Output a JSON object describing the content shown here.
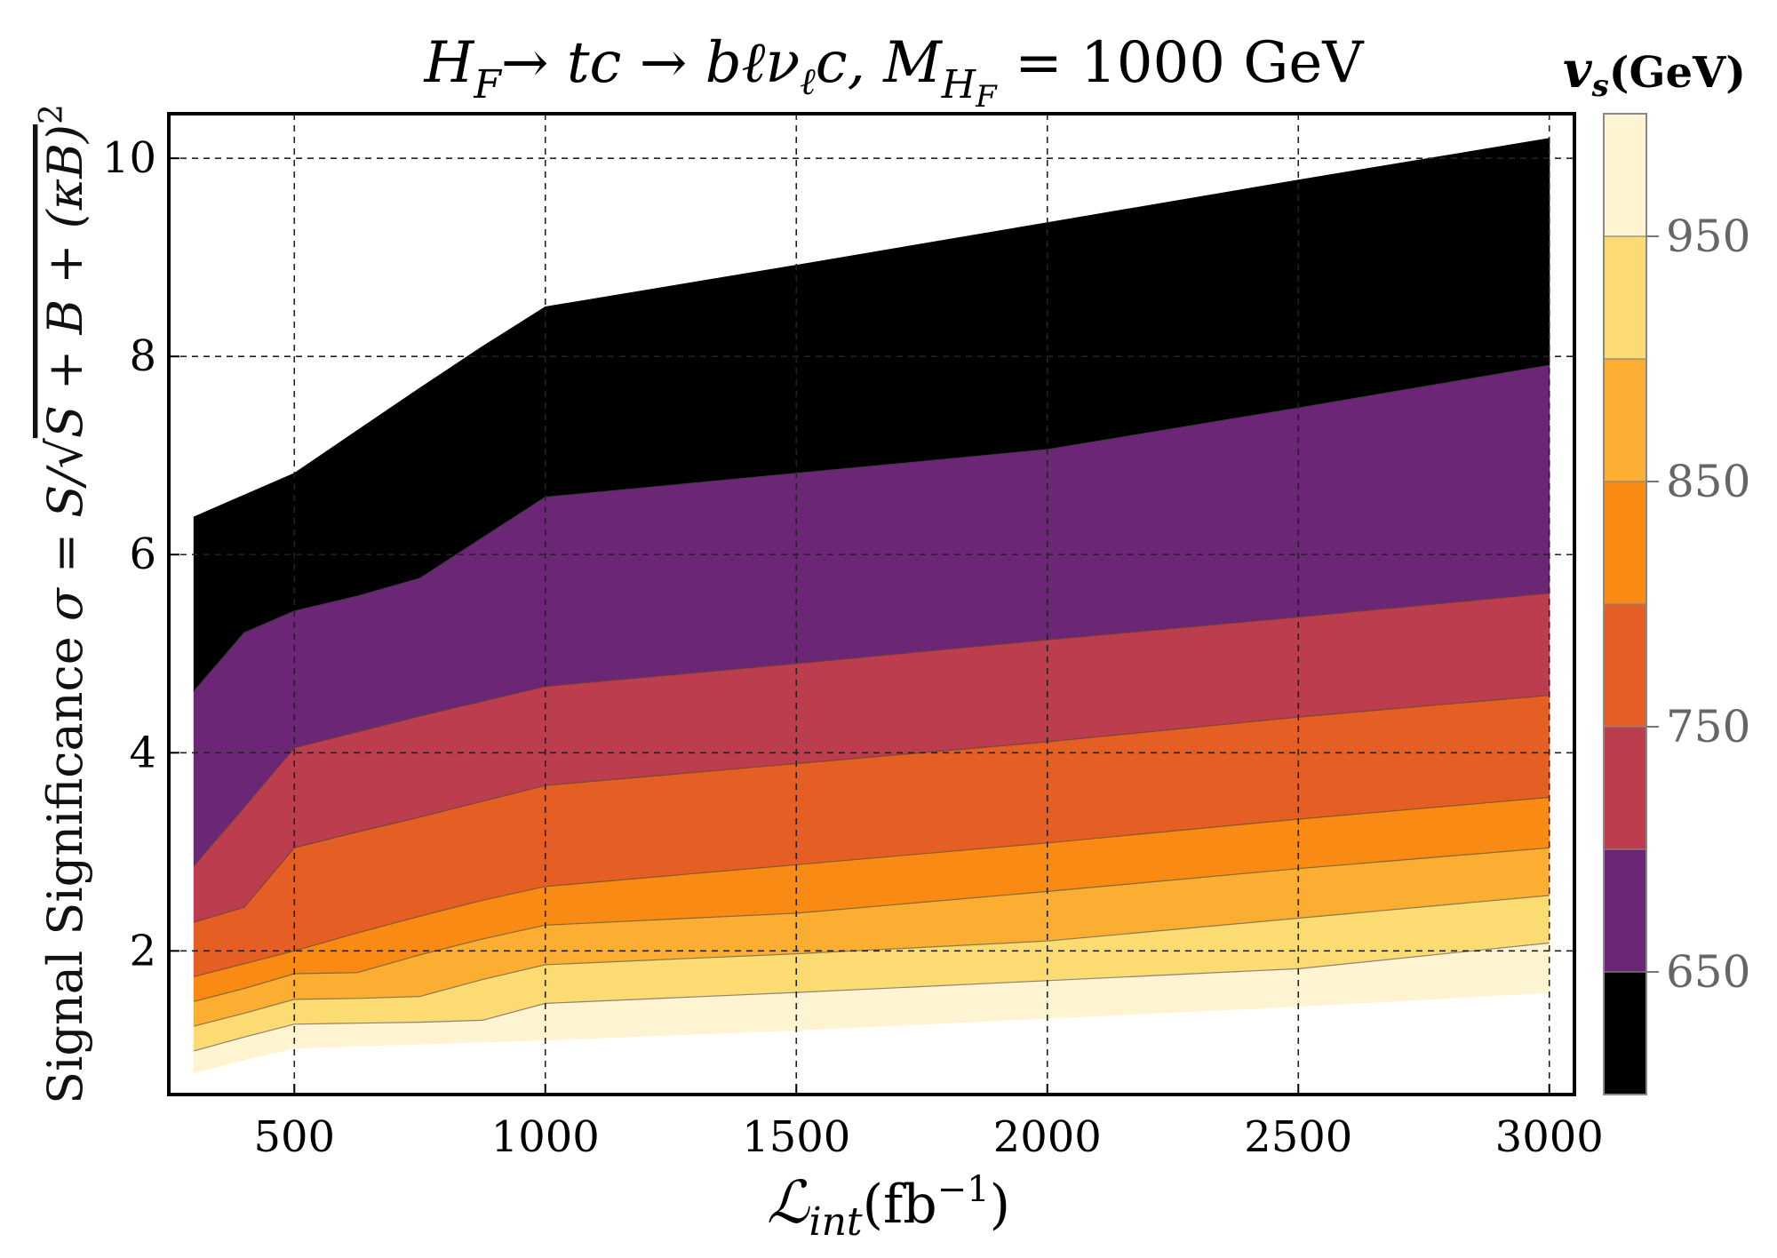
{
  "chart_data": {
    "type": "area",
    "title": "H_F→ tc → bℓν_ℓc, M_{H_F} = 1000 GeV",
    "title_parts": {
      "main": "H",
      "main_sub": "F",
      "reaction": "→ tc → bℓν",
      "nu_sub": "ℓ",
      "c": "c, M",
      "m_sub": "H",
      "m_subsub": "F",
      "value": " = 1000 GeV"
    },
    "xlabel": "ℒ_int(fb⁻¹)",
    "xlabel_parts": {
      "main": "ℒ",
      "sub": "int",
      "unit": "(fb",
      "exp": "−1",
      "close": ")"
    },
    "ylabel": "Signal Significance σ = S/√(S + B + (κB)²)",
    "ylabel_parts": {
      "prefix": "Signal Significance ",
      "sigma": "σ = S/",
      "radicand": "S + B + (κB)",
      "exp": "2"
    },
    "xlim": [
      250,
      3050
    ],
    "ylim": [
      0.55,
      10.45
    ],
    "xticks": [
      500,
      1000,
      1500,
      2000,
      2500,
      3000
    ],
    "yticks": [
      2,
      4,
      6,
      8,
      10
    ],
    "grid": true,
    "x": [
      300,
      400,
      500,
      625,
      750,
      875,
      1000,
      1500,
      2000,
      2500,
      3000
    ],
    "boundaries": [
      {
        "name": "bottom",
        "values": [
          0.77,
          0.9,
          1.02,
          1.04,
          1.06,
          1.08,
          1.1,
          1.2,
          1.32,
          1.44,
          1.58
        ]
      },
      {
        "name": "950",
        "values": [
          0.99,
          1.13,
          1.26,
          1.27,
          1.28,
          1.3,
          1.47,
          1.58,
          1.7,
          1.82,
          2.08
        ]
      },
      {
        "name": "900",
        "values": [
          1.24,
          1.37,
          1.51,
          1.52,
          1.54,
          1.71,
          1.86,
          1.97,
          2.1,
          2.33,
          2.56
        ]
      },
      {
        "name": "850",
        "values": [
          1.49,
          1.62,
          1.77,
          1.78,
          1.96,
          2.12,
          2.26,
          2.38,
          2.6,
          2.83,
          3.04
        ]
      },
      {
        "name": "800",
        "values": [
          1.74,
          1.87,
          2.0,
          2.18,
          2.35,
          2.51,
          2.65,
          2.87,
          3.09,
          3.33,
          3.55
        ]
      },
      {
        "name": "750",
        "values": [
          2.29,
          2.44,
          3.04,
          3.2,
          3.35,
          3.51,
          3.67,
          3.89,
          4.11,
          4.36,
          4.58
        ]
      },
      {
        "name": "700",
        "values": [
          2.86,
          3.45,
          4.05,
          4.21,
          4.37,
          4.52,
          4.67,
          4.9,
          5.14,
          5.37,
          5.61
        ]
      },
      {
        "name": "650",
        "values": [
          4.62,
          5.21,
          5.43,
          5.58,
          5.76,
          6.17,
          6.58,
          6.82,
          7.06,
          7.48,
          7.91
        ]
      },
      {
        "name": "top",
        "values": [
          6.38,
          6.6,
          6.82,
          7.25,
          7.68,
          8.1,
          8.5,
          8.92,
          9.35,
          9.78,
          10.2
        ]
      }
    ],
    "bands": [
      {
        "label": "< 650",
        "color": "#000000",
        "lower": "650",
        "upper": "top"
      },
      {
        "label": "650-700",
        "color": "#6b2675",
        "lower": "700",
        "upper": "650"
      },
      {
        "label": "700-750",
        "color": "#bb3d4e",
        "lower": "750",
        "upper": "700"
      },
      {
        "label": "750-800",
        "color": "#e55e24",
        "lower": "800",
        "upper": "750"
      },
      {
        "label": "800-850",
        "color": "#f98a14",
        "lower": "850",
        "upper": "800"
      },
      {
        "label": "850-900",
        "color": "#fbae32",
        "lower": "900",
        "upper": "850"
      },
      {
        "label": "900-950",
        "color": "#fcdc72",
        "lower": "950",
        "upper": "900"
      },
      {
        "label": "> 950",
        "color": "#fff4d2",
        "lower": "bottom",
        "upper": "950"
      }
    ],
    "colorbar": {
      "title_main": "v",
      "title_sub": "s",
      "title_unit": "(GeV)",
      "range": [
        600,
        1000
      ],
      "colors": [
        "#000000",
        "#6b2675",
        "#bb3d4e",
        "#e55e24",
        "#f98a14",
        "#fbae32",
        "#fcdc72",
        "#fff4d2"
      ],
      "ticks": [
        650,
        750,
        850,
        950
      ],
      "tick_labels": [
        "650",
        "750",
        "850",
        "950"
      ]
    }
  }
}
